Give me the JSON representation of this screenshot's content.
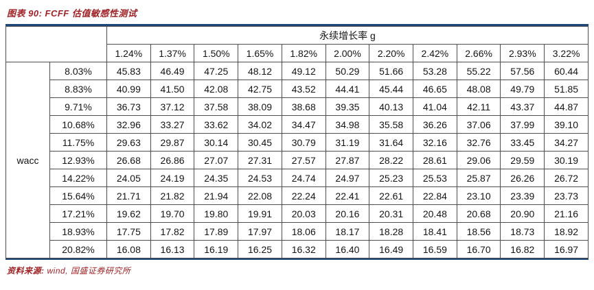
{
  "figure": {
    "title": "图表 90:  FCFF 估值敏感性测试",
    "source_label": "资料来源:",
    "source_text": "wind, 国盛证券研究所"
  },
  "table": {
    "col_group_label": "永续增长率 g",
    "row_group_label": "wacc",
    "col_headers": [
      "1.24%",
      "1.37%",
      "1.50%",
      "1.65%",
      "1.82%",
      "2.00%",
      "2.20%",
      "2.42%",
      "2.66%",
      "2.93%",
      "3.22%"
    ],
    "row_headers": [
      "8.03%",
      "8.83%",
      "9.71%",
      "10.68%",
      "11.75%",
      "12.93%",
      "14.22%",
      "15.64%",
      "17.21%",
      "18.93%",
      "20.82%"
    ],
    "rows": [
      [
        "45.83",
        "46.49",
        "47.25",
        "48.12",
        "49.12",
        "50.29",
        "51.66",
        "53.28",
        "55.22",
        "57.56",
        "60.44"
      ],
      [
        "40.99",
        "41.50",
        "42.08",
        "42.75",
        "43.52",
        "44.41",
        "45.44",
        "46.65",
        "48.08",
        "49.79",
        "51.85"
      ],
      [
        "36.73",
        "37.12",
        "37.58",
        "38.09",
        "38.68",
        "39.35",
        "40.13",
        "41.04",
        "42.11",
        "43.37",
        "44.87"
      ],
      [
        "32.96",
        "33.27",
        "33.62",
        "34.02",
        "34.47",
        "34.98",
        "35.58",
        "36.26",
        "37.06",
        "37.99",
        "39.10"
      ],
      [
        "29.63",
        "29.87",
        "30.14",
        "30.45",
        "30.79",
        "31.19",
        "31.64",
        "32.16",
        "32.76",
        "33.45",
        "34.27"
      ],
      [
        "26.68",
        "26.86",
        "27.07",
        "27.31",
        "27.57",
        "27.87",
        "28.22",
        "28.61",
        "29.06",
        "29.59",
        "30.19"
      ],
      [
        "24.05",
        "24.19",
        "24.35",
        "24.53",
        "24.74",
        "24.97",
        "25.23",
        "25.53",
        "25.87",
        "26.26",
        "26.72"
      ],
      [
        "21.71",
        "21.82",
        "21.94",
        "22.08",
        "22.24",
        "22.41",
        "22.61",
        "22.84",
        "23.10",
        "23.39",
        "23.73"
      ],
      [
        "19.62",
        "19.70",
        "19.80",
        "19.91",
        "20.03",
        "20.16",
        "20.31",
        "20.48",
        "20.68",
        "20.90",
        "21.16"
      ],
      [
        "17.75",
        "17.82",
        "17.89",
        "17.97",
        "18.06",
        "18.17",
        "18.28",
        "18.41",
        "18.56",
        "18.73",
        "18.92"
      ],
      [
        "16.08",
        "16.13",
        "16.19",
        "16.25",
        "16.32",
        "16.40",
        "16.49",
        "16.59",
        "16.70",
        "16.82",
        "16.97"
      ]
    ],
    "highlight": {
      "row_start": 4,
      "row_end": 6,
      "col_start": 4,
      "col_end": 6
    }
  },
  "colors": {
    "title_red": "#a02226",
    "rule_navy": "#1e4679",
    "header_blue": "#2f5496",
    "highlight_border": "#2e5b93",
    "grid_border": "#4d4d4d"
  }
}
